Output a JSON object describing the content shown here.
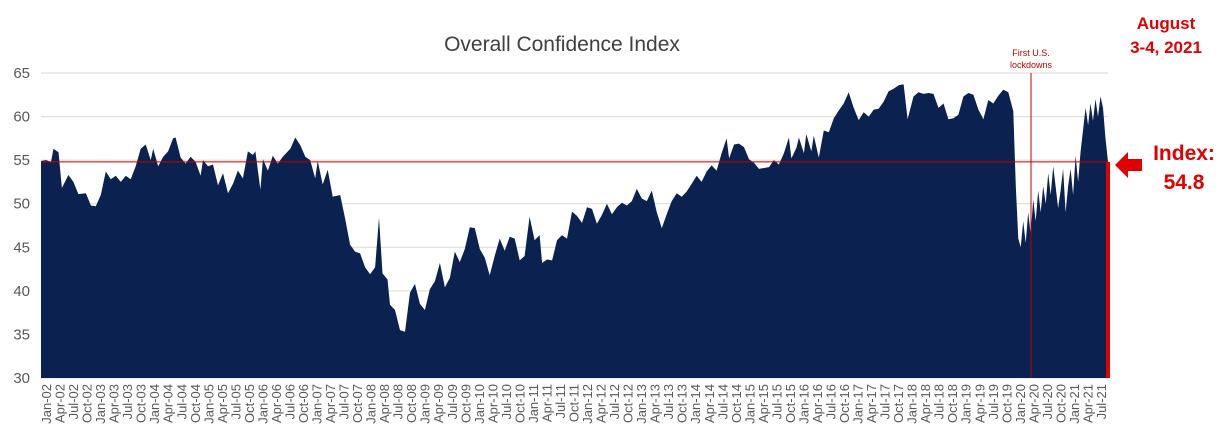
{
  "chart_data": {
    "type": "area",
    "title": "Overall Confidence Index",
    "ylim": [
      30,
      65
    ],
    "yticks": [
      30,
      35,
      40,
      45,
      50,
      55,
      60,
      65
    ],
    "reference_line": 54.8,
    "colors": {
      "area": "#0b2150",
      "reference": "#c00000",
      "annotation": "#e00000",
      "grid": "#d9d9d9"
    },
    "x_tick_labels": [
      "Jan-02",
      "Apr-02",
      "Jul-02",
      "Oct-02",
      "Jan-03",
      "Apr-03",
      "Jul-03",
      "Oct-03",
      "Jan-04",
      "Apr-04",
      "Jul-04",
      "Oct-04",
      "Jan-05",
      "Apr-05",
      "Jul-05",
      "Oct-05",
      "Jan-06",
      "Apr-06",
      "Jul-06",
      "Oct-06",
      "Jan-07",
      "Apr-07",
      "Jul-07",
      "Oct-07",
      "Jan-08",
      "Apr-08",
      "Jul-08",
      "Oct-08",
      "Jan-09",
      "Apr-09",
      "Jul-09",
      "Oct-09",
      "Jan-10",
      "Apr-10",
      "Jul-10",
      "Oct-10",
      "Jan-11",
      "Apr-11",
      "Jul-11",
      "Oct-11",
      "Jan-12",
      "Apr-12",
      "Jul-12",
      "Oct-12",
      "Jan-13",
      "Apr-13",
      "Jul-13",
      "Oct-13",
      "Jan-14",
      "Apr-14",
      "Jul-14",
      "Oct-14",
      "Jan-15",
      "Apr-15",
      "Jul-15",
      "Oct-15",
      "Jan-16",
      "Apr-16",
      "Jul-16",
      "Oct-16",
      "Jan-17",
      "Apr-17",
      "Jul-17",
      "Oct-17",
      "Jan-18",
      "Apr-18",
      "Jul-18",
      "Oct-18",
      "Jan-19",
      "Apr-19",
      "Jul-19",
      "Oct-19",
      "Jan-20",
      "Apr-20",
      "Jul-20",
      "Oct-20",
      "Jan-21",
      "Apr-21",
      "Jul-21"
    ],
    "series": [
      {
        "values": [
          [
            2002.0,
            54.9
          ],
          [
            2002.1,
            55.0
          ],
          [
            2002.2,
            54.8
          ],
          [
            2002.25,
            56.3
          ],
          [
            2002.35,
            55.9
          ],
          [
            2002.42,
            51.8
          ],
          [
            2002.55,
            53.3
          ],
          [
            2002.65,
            52.5
          ],
          [
            2002.75,
            51.1
          ],
          [
            2002.9,
            51.2
          ],
          [
            2003.0,
            49.8
          ],
          [
            2003.1,
            49.7
          ],
          [
            2003.2,
            51.0
          ],
          [
            2003.3,
            53.7
          ],
          [
            2003.4,
            52.8
          ],
          [
            2003.5,
            53.2
          ],
          [
            2003.6,
            52.5
          ],
          [
            2003.7,
            53.2
          ],
          [
            2003.8,
            52.8
          ],
          [
            2003.9,
            54.3
          ],
          [
            2004.0,
            56.3
          ],
          [
            2004.1,
            56.8
          ],
          [
            2004.2,
            55.0
          ],
          [
            2004.25,
            56.3
          ],
          [
            2004.35,
            54.3
          ],
          [
            2004.45,
            55.4
          ],
          [
            2004.55,
            56.0
          ],
          [
            2004.65,
            57.5
          ],
          [
            2004.7,
            57.6
          ],
          [
            2004.8,
            55.3
          ],
          [
            2004.9,
            54.6
          ],
          [
            2005.0,
            55.4
          ],
          [
            2005.1,
            54.8
          ],
          [
            2005.2,
            53.2
          ],
          [
            2005.25,
            55.0
          ],
          [
            2005.35,
            54.3
          ],
          [
            2005.45,
            54.5
          ],
          [
            2005.55,
            52.1
          ],
          [
            2005.65,
            53.5
          ],
          [
            2005.75,
            51.2
          ],
          [
            2005.85,
            52.3
          ],
          [
            2005.95,
            53.8
          ],
          [
            2006.05,
            52.9
          ],
          [
            2006.15,
            56.0
          ],
          [
            2006.25,
            55.6
          ],
          [
            2006.3,
            56.0
          ],
          [
            2006.4,
            51.6
          ],
          [
            2006.45,
            55.1
          ],
          [
            2006.55,
            53.8
          ],
          [
            2006.65,
            55.5
          ],
          [
            2006.75,
            54.6
          ],
          [
            2006.85,
            55.4
          ],
          [
            2007.0,
            56.3
          ],
          [
            2007.1,
            57.6
          ],
          [
            2007.2,
            56.7
          ],
          [
            2007.3,
            55.4
          ],
          [
            2007.4,
            55.0
          ],
          [
            2007.5,
            52.9
          ],
          [
            2007.55,
            54.9
          ],
          [
            2007.65,
            52.2
          ],
          [
            2007.75,
            53.9
          ],
          [
            2007.85,
            50.8
          ],
          [
            2008.0,
            51.0
          ],
          [
            2008.1,
            48.3
          ],
          [
            2008.2,
            45.3
          ],
          [
            2008.3,
            44.5
          ],
          [
            2008.4,
            44.3
          ],
          [
            2008.5,
            42.7
          ],
          [
            2008.6,
            41.9
          ],
          [
            2008.7,
            42.7
          ],
          [
            2008.78,
            48.4
          ],
          [
            2008.85,
            42.0
          ],
          [
            2008.95,
            41.3
          ],
          [
            2009.0,
            38.4
          ],
          [
            2009.1,
            37.8
          ],
          [
            2009.2,
            35.5
          ],
          [
            2009.3,
            35.3
          ],
          [
            2009.4,
            39.8
          ],
          [
            2009.5,
            40.8
          ],
          [
            2009.6,
            38.5
          ],
          [
            2009.7,
            37.8
          ],
          [
            2009.8,
            40.2
          ],
          [
            2009.9,
            41.1
          ],
          [
            2010.0,
            43.2
          ],
          [
            2010.1,
            40.4
          ],
          [
            2010.2,
            41.5
          ],
          [
            2010.3,
            44.5
          ],
          [
            2010.4,
            43.3
          ],
          [
            2010.5,
            44.8
          ],
          [
            2010.6,
            47.3
          ],
          [
            2010.7,
            47.2
          ],
          [
            2010.8,
            44.8
          ],
          [
            2010.9,
            43.8
          ],
          [
            2011.0,
            41.8
          ],
          [
            2011.1,
            44.0
          ],
          [
            2011.2,
            46.0
          ],
          [
            2011.3,
            44.6
          ],
          [
            2011.4,
            46.2
          ],
          [
            2011.5,
            46.0
          ],
          [
            2011.6,
            43.5
          ],
          [
            2011.7,
            44.0
          ],
          [
            2011.8,
            48.5
          ],
          [
            2011.9,
            45.8
          ],
          [
            2012.0,
            46.4
          ],
          [
            2012.05,
            43.2
          ],
          [
            2012.15,
            43.6
          ],
          [
            2012.25,
            43.5
          ],
          [
            2012.35,
            45.8
          ],
          [
            2012.45,
            46.4
          ],
          [
            2012.55,
            46.0
          ],
          [
            2012.65,
            49.1
          ],
          [
            2012.75,
            48.6
          ],
          [
            2012.85,
            47.8
          ],
          [
            2012.95,
            49.6
          ],
          [
            2013.05,
            49.4
          ],
          [
            2013.15,
            47.7
          ],
          [
            2013.25,
            48.7
          ],
          [
            2013.35,
            50.0
          ],
          [
            2013.45,
            48.8
          ],
          [
            2013.55,
            49.6
          ],
          [
            2013.65,
            50.1
          ],
          [
            2013.75,
            49.8
          ],
          [
            2013.85,
            50.3
          ],
          [
            2013.95,
            51.7
          ],
          [
            2014.05,
            50.6
          ],
          [
            2014.15,
            50.3
          ],
          [
            2014.25,
            51.5
          ],
          [
            2014.35,
            49.0
          ],
          [
            2014.45,
            47.2
          ],
          [
            2014.55,
            48.8
          ],
          [
            2014.65,
            50.3
          ],
          [
            2014.75,
            51.2
          ],
          [
            2014.85,
            50.8
          ],
          [
            2014.95,
            51.4
          ],
          [
            2015.05,
            52.3
          ],
          [
            2015.15,
            53.2
          ],
          [
            2015.25,
            52.5
          ],
          [
            2015.35,
            53.7
          ],
          [
            2015.45,
            54.4
          ],
          [
            2015.55,
            53.8
          ],
          [
            2015.65,
            55.8
          ],
          [
            2015.75,
            57.5
          ],
          [
            2015.8,
            55.2
          ],
          [
            2015.9,
            56.8
          ],
          [
            2016.0,
            56.9
          ],
          [
            2016.1,
            56.5
          ],
          [
            2016.2,
            55.1
          ],
          [
            2016.3,
            54.7
          ],
          [
            2016.4,
            54.0
          ],
          [
            2016.5,
            54.1
          ],
          [
            2016.6,
            54.2
          ],
          [
            2016.7,
            55.0
          ],
          [
            2016.8,
            54.5
          ],
          [
            2016.9,
            55.8
          ],
          [
            2017.0,
            57.6
          ],
          [
            2017.05,
            55.2
          ],
          [
            2017.15,
            56.4
          ],
          [
            2017.2,
            57.6
          ],
          [
            2017.3,
            55.8
          ],
          [
            2017.35,
            58.0
          ],
          [
            2017.45,
            56.0
          ],
          [
            2017.5,
            57.8
          ],
          [
            2017.6,
            55.3
          ],
          [
            2017.7,
            58.4
          ],
          [
            2017.8,
            58.2
          ],
          [
            2017.9,
            59.8
          ],
          [
            2018.0,
            60.7
          ],
          [
            2018.1,
            61.5
          ],
          [
            2018.2,
            62.8
          ],
          [
            2018.3,
            61.0
          ],
          [
            2018.4,
            59.6
          ],
          [
            2018.5,
            60.5
          ],
          [
            2018.6,
            60.0
          ],
          [
            2018.7,
            60.8
          ],
          [
            2018.8,
            60.9
          ],
          [
            2018.9,
            61.7
          ],
          [
            2019.0,
            62.9
          ],
          [
            2019.1,
            63.2
          ],
          [
            2019.2,
            63.6
          ],
          [
            2019.3,
            63.7
          ],
          [
            2019.38,
            59.7
          ],
          [
            2019.5,
            62.3
          ],
          [
            2019.6,
            62.8
          ],
          [
            2019.7,
            62.6
          ],
          [
            2019.8,
            62.7
          ],
          [
            2019.9,
            62.6
          ],
          [
            2020.0,
            61.0
          ],
          [
            2020.1,
            61.5
          ],
          [
            2020.2,
            59.7
          ],
          [
            2020.3,
            59.8
          ],
          [
            2020.4,
            60.2
          ],
          [
            2020.5,
            62.3
          ],
          [
            2020.6,
            62.7
          ],
          [
            2020.7,
            62.5
          ],
          [
            2020.8,
            60.8
          ],
          [
            2020.9,
            59.7
          ],
          [
            2021.0,
            61.9
          ],
          [
            2021.1,
            61.5
          ],
          [
            2021.2,
            62.4
          ],
          [
            2021.3,
            63.1
          ],
          [
            2021.4,
            62.8
          ],
          [
            2021.5,
            60.6
          ],
          [
            2021.55,
            52.0
          ],
          [
            2021.6,
            46.0
          ],
          [
            2021.65,
            45.0
          ],
          [
            2021.7,
            48.0
          ],
          [
            2021.75,
            45.5
          ],
          [
            2021.8,
            49.0
          ],
          [
            2021.85,
            46.5
          ],
          [
            2021.9,
            50.5
          ],
          [
            2021.95,
            48.0
          ],
          [
            2022.0,
            51.5
          ],
          [
            2022.05,
            49.0
          ],
          [
            2022.1,
            52.0
          ],
          [
            2022.15,
            50.0
          ],
          [
            2022.2,
            53.5
          ],
          [
            2022.25,
            51.0
          ],
          [
            2022.3,
            54.3
          ],
          [
            2022.35,
            52.0
          ],
          [
            2022.4,
            49.5
          ],
          [
            2022.45,
            51.5
          ],
          [
            2022.5,
            54.0
          ],
          [
            2022.55,
            49.0
          ],
          [
            2022.6,
            52.0
          ],
          [
            2022.65,
            54.0
          ],
          [
            2022.7,
            51.0
          ],
          [
            2022.75,
            55.5
          ],
          [
            2022.8,
            52.5
          ],
          [
            2022.85,
            56.0
          ],
          [
            2022.9,
            58.5
          ],
          [
            2022.95,
            61.0
          ],
          [
            2023.0,
            59.0
          ],
          [
            2023.05,
            61.5
          ],
          [
            2023.1,
            59.5
          ],
          [
            2023.15,
            62.0
          ],
          [
            2023.2,
            60.0
          ],
          [
            2023.25,
            62.3
          ],
          [
            2023.3,
            61.0
          ],
          [
            2023.35,
            57.5
          ],
          [
            2023.4,
            54.8
          ]
        ]
      }
    ]
  },
  "annotations": {
    "lockdown_line1": "First U.S.",
    "lockdown_line2": "lockdowns",
    "date_line1": "August",
    "date_line2": "3-4, 2021",
    "index_line1": "Index:",
    "index_line2": "54.8"
  }
}
